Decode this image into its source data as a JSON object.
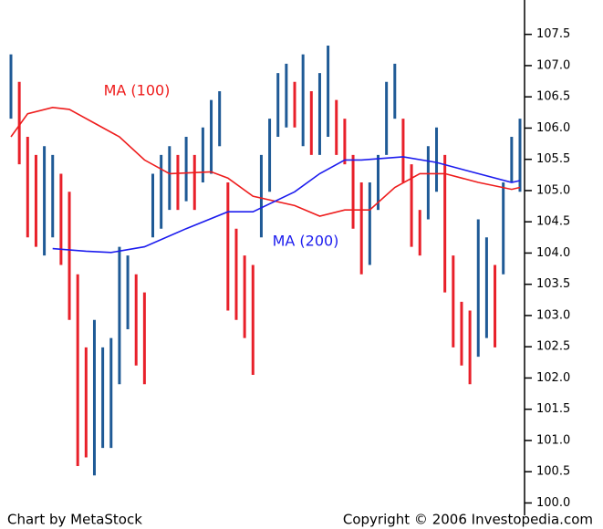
{
  "chart_data": {
    "type": "ohlc",
    "footer_left": "Chart by MetaStock",
    "footer_right": "Copyright © 2006 Investopedia.com",
    "up_color": "#1f5a96",
    "down_color": "#e8202a",
    "high": [
      107.18,
      106.74,
      105.86,
      105.57,
      105.71,
      105.57,
      105.27,
      104.98,
      103.66,
      102.49,
      102.93,
      102.49,
      102.64,
      104.1,
      103.96,
      103.66,
      103.37,
      105.27,
      105.57,
      105.71,
      105.57,
      105.86,
      105.57,
      106.01,
      106.45,
      106.59,
      105.13,
      104.39,
      103.96,
      103.81,
      105.57,
      106.15,
      106.88,
      107.03,
      106.74,
      107.18,
      106.59,
      106.88,
      107.32,
      106.45,
      106.15,
      105.57,
      105.13,
      105.13,
      105.57,
      106.74,
      107.03,
      106.15,
      105.42,
      104.69,
      105.71,
      106.01,
      105.57,
      103.96,
      103.22,
      103.08,
      104.54,
      104.25,
      103.81,
      105.13,
      105.86,
      106.15
    ],
    "low": [
      106.15,
      105.42,
      104.25,
      104.1,
      103.96,
      104.25,
      103.81,
      102.93,
      100.59,
      100.73,
      100.44,
      100.88,
      100.88,
      101.9,
      102.78,
      102.2,
      101.9,
      104.25,
      104.39,
      104.69,
      104.69,
      104.83,
      104.69,
      105.13,
      105.27,
      105.71,
      103.08,
      102.93,
      102.64,
      102.05,
      104.25,
      104.98,
      105.86,
      106.01,
      106.01,
      105.71,
      105.57,
      105.57,
      105.86,
      105.57,
      105.42,
      104.39,
      103.66,
      103.81,
      104.69,
      105.57,
      106.15,
      105.13,
      104.1,
      103.96,
      104.54,
      104.98,
      103.37,
      102.49,
      102.2,
      101.9,
      102.34,
      102.64,
      102.49,
      103.66,
      105.13,
      104.98
    ],
    "series": [
      {
        "name": "MA (100)",
        "color": "#ee1c1c",
        "x": [
          0,
          2,
          5,
          7,
          10,
          13,
          16,
          19,
          24,
          26,
          29,
          34,
          37,
          40,
          43,
          46,
          49,
          52,
          56,
          60,
          61
        ],
        "values": [
          105.86,
          106.23,
          106.33,
          106.3,
          106.08,
          105.86,
          105.49,
          105.27,
          105.3,
          105.2,
          104.91,
          104.76,
          104.59,
          104.69,
          104.69,
          105.05,
          105.27,
          105.27,
          105.13,
          105.02,
          105.05
        ]
      },
      {
        "name": "MA (200)",
        "color": "#1c1cee",
        "x": [
          5,
          9,
          12,
          16,
          21,
          26,
          29,
          34,
          37,
          40,
          42,
          47,
          51,
          56,
          60,
          61
        ],
        "values": [
          104.07,
          104.03,
          104.01,
          104.1,
          104.39,
          104.66,
          104.66,
          104.98,
          105.27,
          105.49,
          105.49,
          105.54,
          105.45,
          105.27,
          105.13,
          105.16
        ]
      }
    ],
    "ylim": [
      99.7,
      108.05
    ],
    "yticks": [
      {
        "value": 100,
        "label": "100.0"
      },
      100.5,
      {
        "value": 101,
        "label": "101.0"
      },
      101.5,
      {
        "value": 102,
        "label": "102.0"
      },
      102.5,
      {
        "value": 103,
        "label": "103.0"
      },
      103.5,
      {
        "value": 104,
        "label": "104.0"
      },
      104.5,
      {
        "value": 105,
        "label": "105.0"
      },
      105.5,
      {
        "value": 106,
        "label": "106.0"
      },
      106.5,
      {
        "value": 107,
        "label": "107.0"
      },
      107.5
    ]
  }
}
